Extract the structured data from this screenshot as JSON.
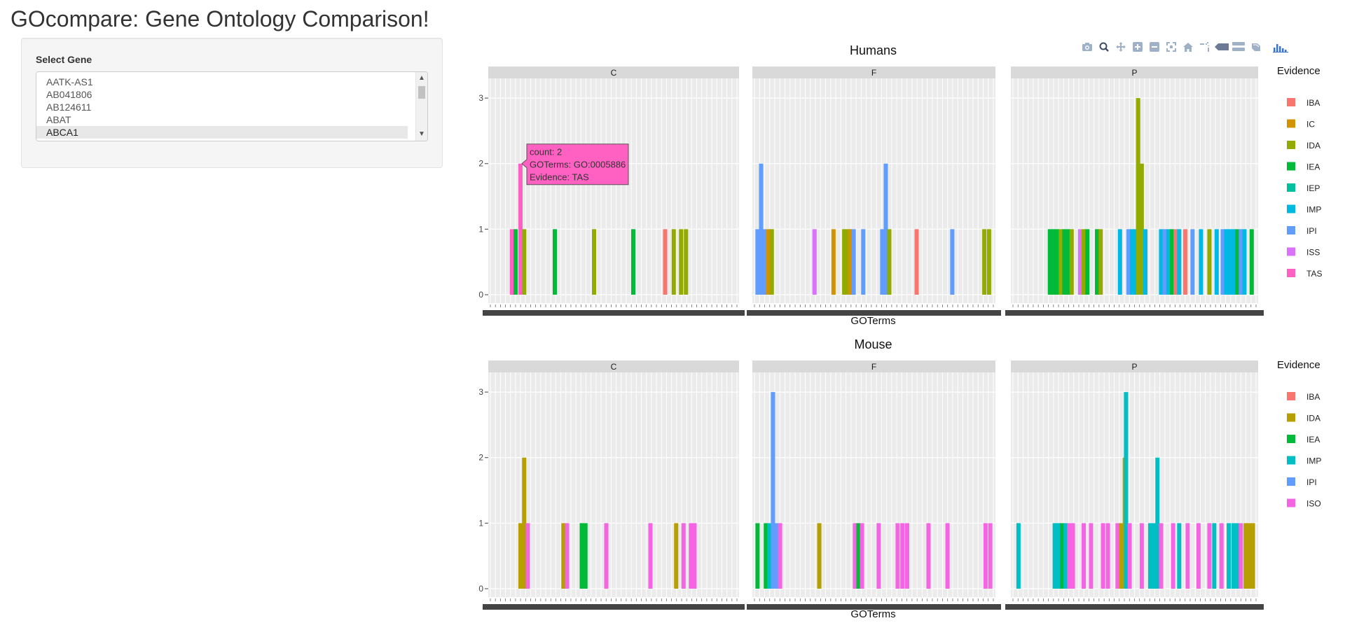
{
  "app": {
    "title": "GOcompare: Gene Ontology Comparison!"
  },
  "sidebar": {
    "select_label": "Select Gene",
    "genes": [
      "AATK-AS1",
      "AB041806",
      "AB124611",
      "ABAT",
      "ABCA1"
    ],
    "selected": "ABCA1"
  },
  "modebar": [
    "camera-icon",
    "zoom-icon",
    "pan-icon",
    "zoom-in-icon",
    "zoom-out-icon",
    "autoscale-icon",
    "reset-axes-icon",
    "spike-lines-icon",
    "hover-closest-icon",
    "hover-compare-icon",
    "edit-chart-icon",
    "plotly-logo-icon"
  ],
  "chart_data": [
    {
      "type": "bar",
      "title": "Humans",
      "xlabel": "GOTerms",
      "ylabel": "",
      "ylim": [
        0,
        3.3
      ],
      "yticks": [
        0,
        1,
        2,
        3
      ],
      "facets": [
        "C",
        "F",
        "P"
      ],
      "legend_title": "Evidence",
      "legend": [
        "IBA",
        "IC",
        "IDA",
        "IEA",
        "IEP",
        "IMP",
        "IPI",
        "ISS",
        "TAS"
      ],
      "colors": {
        "IBA": "#F8766D",
        "IC": "#D39200",
        "IDA": "#93AA00",
        "IEA": "#00BA38",
        "IEP": "#00C19F",
        "IMP": "#00B9E3",
        "IPI": "#619CFF",
        "ISS": "#DB72FB",
        "TAS": "#FF61C3"
      },
      "bars": [
        {
          "facet": "C",
          "x": 0.085,
          "count": 1,
          "evidence": "TAS"
        },
        {
          "facet": "C",
          "x": 0.1,
          "count": 1,
          "evidence": "IEA"
        },
        {
          "facet": "C",
          "x": 0.12,
          "count": 2,
          "evidence": "TAS"
        },
        {
          "facet": "C",
          "x": 0.135,
          "count": 1,
          "evidence": "IDA"
        },
        {
          "facet": "C",
          "x": 0.26,
          "count": 1,
          "evidence": "IEA"
        },
        {
          "facet": "C",
          "x": 0.42,
          "count": 1,
          "evidence": "IDA"
        },
        {
          "facet": "C",
          "x": 0.58,
          "count": 1,
          "evidence": "IEA"
        },
        {
          "facet": "C",
          "x": 0.71,
          "count": 1,
          "evidence": "IBA"
        },
        {
          "facet": "C",
          "x": 0.745,
          "count": 1,
          "evidence": "IDA"
        },
        {
          "facet": "C",
          "x": 0.775,
          "count": 1,
          "evidence": "IDA"
        },
        {
          "facet": "C",
          "x": 0.795,
          "count": 1,
          "evidence": "IDA"
        },
        {
          "facet": "F",
          "x": 0.01,
          "count": 1,
          "evidence": "IPI"
        },
        {
          "facet": "F",
          "x": 0.025,
          "count": 2,
          "evidence": "IPI"
        },
        {
          "facet": "F",
          "x": 0.04,
          "count": 1,
          "evidence": "IPI"
        },
        {
          "facet": "F",
          "x": 0.055,
          "count": 1,
          "evidence": "IC"
        },
        {
          "facet": "F",
          "x": 0.07,
          "count": 1,
          "evidence": "IDA"
        },
        {
          "facet": "F",
          "x": 0.25,
          "count": 1,
          "evidence": "ISS"
        },
        {
          "facet": "F",
          "x": 0.33,
          "count": 1,
          "evidence": "IC"
        },
        {
          "facet": "F",
          "x": 0.375,
          "count": 1,
          "evidence": "IDA"
        },
        {
          "facet": "F",
          "x": 0.39,
          "count": 1,
          "evidence": "IDA"
        },
        {
          "facet": "F",
          "x": 0.4,
          "count": 1,
          "evidence": "IC"
        },
        {
          "facet": "F",
          "x": 0.415,
          "count": 1,
          "evidence": "IPI"
        },
        {
          "facet": "F",
          "x": 0.455,
          "count": 1,
          "evidence": "IPI"
        },
        {
          "facet": "F",
          "x": 0.535,
          "count": 1,
          "evidence": "IPI"
        },
        {
          "facet": "F",
          "x": 0.55,
          "count": 2,
          "evidence": "IPI"
        },
        {
          "facet": "F",
          "x": 0.565,
          "count": 1,
          "evidence": "IDA"
        },
        {
          "facet": "F",
          "x": 0.68,
          "count": 1,
          "evidence": "IBA"
        },
        {
          "facet": "F",
          "x": 0.83,
          "count": 1,
          "evidence": "IPI"
        },
        {
          "facet": "F",
          "x": 0.965,
          "count": 1,
          "evidence": "IDA"
        },
        {
          "facet": "F",
          "x": 0.985,
          "count": 1,
          "evidence": "IDA"
        },
        {
          "facet": "P",
          "x": 0.15,
          "count": 1,
          "evidence": "IEA"
        },
        {
          "facet": "P",
          "x": 0.165,
          "count": 1,
          "evidence": "IEA"
        },
        {
          "facet": "P",
          "x": 0.18,
          "count": 1,
          "evidence": "IEA"
        },
        {
          "facet": "P",
          "x": 0.195,
          "count": 1,
          "evidence": "IDA"
        },
        {
          "facet": "P",
          "x": 0.21,
          "count": 1,
          "evidence": "IEA"
        },
        {
          "facet": "P",
          "x": 0.225,
          "count": 1,
          "evidence": "IEA"
        },
        {
          "facet": "P",
          "x": 0.24,
          "count": 1,
          "evidence": "IDA"
        },
        {
          "facet": "P",
          "x": 0.275,
          "count": 1,
          "evidence": "ISS"
        },
        {
          "facet": "P",
          "x": 0.29,
          "count": 1,
          "evidence": "IDA"
        },
        {
          "facet": "P",
          "x": 0.305,
          "count": 1,
          "evidence": "IEA"
        },
        {
          "facet": "P",
          "x": 0.345,
          "count": 1,
          "evidence": "IEA"
        },
        {
          "facet": "P",
          "x": 0.36,
          "count": 1,
          "evidence": "IDA"
        },
        {
          "facet": "P",
          "x": 0.44,
          "count": 1,
          "evidence": "IMP"
        },
        {
          "facet": "P",
          "x": 0.475,
          "count": 1,
          "evidence": "IPI"
        },
        {
          "facet": "P",
          "x": 0.49,
          "count": 1,
          "evidence": "IMP"
        },
        {
          "facet": "P",
          "x": 0.505,
          "count": 1,
          "evidence": "IMP"
        },
        {
          "facet": "P",
          "x": 0.515,
          "count": 3,
          "evidence": "IDA"
        },
        {
          "facet": "P",
          "x": 0.53,
          "count": 2,
          "evidence": "IDA"
        },
        {
          "facet": "P",
          "x": 0.545,
          "count": 1,
          "evidence": "IMP"
        },
        {
          "facet": "P",
          "x": 0.61,
          "count": 1,
          "evidence": "IMP"
        },
        {
          "facet": "P",
          "x": 0.625,
          "count": 1,
          "evidence": "IPI"
        },
        {
          "facet": "P",
          "x": 0.64,
          "count": 1,
          "evidence": "IMP"
        },
        {
          "facet": "P",
          "x": 0.655,
          "count": 1,
          "evidence": "IEA"
        },
        {
          "facet": "P",
          "x": 0.67,
          "count": 1,
          "evidence": "IBA"
        },
        {
          "facet": "P",
          "x": 0.685,
          "count": 1,
          "evidence": "IMP"
        },
        {
          "facet": "P",
          "x": 0.71,
          "count": 1,
          "evidence": "IBA"
        },
        {
          "facet": "P",
          "x": 0.74,
          "count": 1,
          "evidence": "IPI"
        },
        {
          "facet": "P",
          "x": 0.775,
          "count": 1,
          "evidence": "IMP"
        },
        {
          "facet": "P",
          "x": 0.81,
          "count": 1,
          "evidence": "IDA"
        },
        {
          "facet": "P",
          "x": 0.84,
          "count": 1,
          "evidence": "IMP"
        },
        {
          "facet": "P",
          "x": 0.865,
          "count": 1,
          "evidence": "IPI"
        },
        {
          "facet": "P",
          "x": 0.88,
          "count": 1,
          "evidence": "IMP"
        },
        {
          "facet": "P",
          "x": 0.895,
          "count": 1,
          "evidence": "IMP"
        },
        {
          "facet": "P",
          "x": 0.91,
          "count": 1,
          "evidence": "IMP"
        },
        {
          "facet": "P",
          "x": 0.925,
          "count": 1,
          "evidence": "IEA"
        },
        {
          "facet": "P",
          "x": 0.94,
          "count": 1,
          "evidence": "IPI"
        },
        {
          "facet": "P",
          "x": 0.955,
          "count": 1,
          "evidence": "IMP"
        },
        {
          "facet": "P",
          "x": 0.985,
          "count": 1,
          "evidence": "IEA"
        }
      ],
      "tooltip": {
        "facet": "C",
        "x": 0.12,
        "lines": [
          "count: 2",
          "GOTerms: GO:0005886",
          "Evidence: TAS"
        ],
        "color": "#FF61C3"
      }
    },
    {
      "type": "bar",
      "title": "Mouse",
      "xlabel": "GOTerms",
      "ylabel": "",
      "ylim": [
        0,
        3.3
      ],
      "yticks": [
        0,
        1,
        2,
        3
      ],
      "facets": [
        "C",
        "F",
        "P"
      ],
      "legend_title": "Evidence",
      "legend": [
        "IBA",
        "IDA",
        "IEA",
        "IMP",
        "IPI",
        "ISO"
      ],
      "colors": {
        "IBA": "#F8766D",
        "IDA": "#B79F00",
        "IEA": "#00BA38",
        "IMP": "#00BFC4",
        "IPI": "#619CFF",
        "ISO": "#F564E3"
      },
      "bars": [
        {
          "facet": "C",
          "x": 0.12,
          "count": 1,
          "evidence": "IDA"
        },
        {
          "facet": "C",
          "x": 0.135,
          "count": 2,
          "evidence": "IDA"
        },
        {
          "facet": "C",
          "x": 0.15,
          "count": 1,
          "evidence": "ISO"
        },
        {
          "facet": "C",
          "x": 0.295,
          "count": 1,
          "evidence": "IDA"
        },
        {
          "facet": "C",
          "x": 0.31,
          "count": 1,
          "evidence": "ISO"
        },
        {
          "facet": "C",
          "x": 0.37,
          "count": 1,
          "evidence": "IEA"
        },
        {
          "facet": "C",
          "x": 0.385,
          "count": 1,
          "evidence": "IEA"
        },
        {
          "facet": "C",
          "x": 0.47,
          "count": 1,
          "evidence": "ISO"
        },
        {
          "facet": "C",
          "x": 0.65,
          "count": 1,
          "evidence": "ISO"
        },
        {
          "facet": "C",
          "x": 0.755,
          "count": 1,
          "evidence": "IDA"
        },
        {
          "facet": "C",
          "x": 0.785,
          "count": 1,
          "evidence": "ISO"
        },
        {
          "facet": "C",
          "x": 0.815,
          "count": 1,
          "evidence": "ISO"
        },
        {
          "facet": "C",
          "x": 0.83,
          "count": 1,
          "evidence": "ISO"
        },
        {
          "facet": "F",
          "x": 0.01,
          "count": 1,
          "evidence": "IEA"
        },
        {
          "facet": "F",
          "x": 0.045,
          "count": 1,
          "evidence": "IEA"
        },
        {
          "facet": "F",
          "x": 0.06,
          "count": 1,
          "evidence": "IMP"
        },
        {
          "facet": "F",
          "x": 0.075,
          "count": 3,
          "evidence": "IPI"
        },
        {
          "facet": "F",
          "x": 0.09,
          "count": 1,
          "evidence": "IPI"
        },
        {
          "facet": "F",
          "x": 0.105,
          "count": 1,
          "evidence": "ISO"
        },
        {
          "facet": "F",
          "x": 0.27,
          "count": 1,
          "evidence": "IDA"
        },
        {
          "facet": "F",
          "x": 0.42,
          "count": 1,
          "evidence": "ISO"
        },
        {
          "facet": "F",
          "x": 0.435,
          "count": 1,
          "evidence": "IEA"
        },
        {
          "facet": "F",
          "x": 0.45,
          "count": 1,
          "evidence": "ISO"
        },
        {
          "facet": "F",
          "x": 0.52,
          "count": 1,
          "evidence": "ISO"
        },
        {
          "facet": "F",
          "x": 0.6,
          "count": 1,
          "evidence": "ISO"
        },
        {
          "facet": "F",
          "x": 0.62,
          "count": 1,
          "evidence": "ISO"
        },
        {
          "facet": "F",
          "x": 0.64,
          "count": 1,
          "evidence": "ISO"
        },
        {
          "facet": "F",
          "x": 0.73,
          "count": 1,
          "evidence": "ISO"
        },
        {
          "facet": "F",
          "x": 0.81,
          "count": 1,
          "evidence": "ISO"
        },
        {
          "facet": "F",
          "x": 0.97,
          "count": 1,
          "evidence": "ISO"
        },
        {
          "facet": "F",
          "x": 0.99,
          "count": 1,
          "evidence": "ISO"
        },
        {
          "facet": "P",
          "x": 0.02,
          "count": 1,
          "evidence": "IMP"
        },
        {
          "facet": "P",
          "x": 0.17,
          "count": 1,
          "evidence": "IMP"
        },
        {
          "facet": "P",
          "x": 0.185,
          "count": 1,
          "evidence": "IMP"
        },
        {
          "facet": "P",
          "x": 0.2,
          "count": 1,
          "evidence": "IEA"
        },
        {
          "facet": "P",
          "x": 0.215,
          "count": 1,
          "evidence": "IMP"
        },
        {
          "facet": "P",
          "x": 0.23,
          "count": 1,
          "evidence": "ISO"
        },
        {
          "facet": "P",
          "x": 0.245,
          "count": 1,
          "evidence": "ISO"
        },
        {
          "facet": "P",
          "x": 0.29,
          "count": 1,
          "evidence": "ISO"
        },
        {
          "facet": "P",
          "x": 0.32,
          "count": 1,
          "evidence": "ISO"
        },
        {
          "facet": "P",
          "x": 0.37,
          "count": 1,
          "evidence": "ISO"
        },
        {
          "facet": "P",
          "x": 0.39,
          "count": 1,
          "evidence": "ISO"
        },
        {
          "facet": "P",
          "x": 0.43,
          "count": 1,
          "evidence": "ISO"
        },
        {
          "facet": "P",
          "x": 0.445,
          "count": 1,
          "evidence": "IDA"
        },
        {
          "facet": "P",
          "x": 0.46,
          "count": 2,
          "evidence": "IDA"
        },
        {
          "facet": "P",
          "x": 0.465,
          "count": 3,
          "evidence": "IMP"
        },
        {
          "facet": "P",
          "x": 0.48,
          "count": 1,
          "evidence": "ISO"
        },
        {
          "facet": "P",
          "x": 0.53,
          "count": 1,
          "evidence": "ISO"
        },
        {
          "facet": "P",
          "x": 0.565,
          "count": 1,
          "evidence": "IMP"
        },
        {
          "facet": "P",
          "x": 0.58,
          "count": 1,
          "evidence": "IMP"
        },
        {
          "facet": "P",
          "x": 0.595,
          "count": 2,
          "evidence": "IMP"
        },
        {
          "facet": "P",
          "x": 0.61,
          "count": 1,
          "evidence": "ISO"
        },
        {
          "facet": "P",
          "x": 0.66,
          "count": 1,
          "evidence": "ISO"
        },
        {
          "facet": "P",
          "x": 0.685,
          "count": 1,
          "evidence": "IMP"
        },
        {
          "facet": "P",
          "x": 0.72,
          "count": 1,
          "evidence": "ISO"
        },
        {
          "facet": "P",
          "x": 0.765,
          "count": 1,
          "evidence": "ISO"
        },
        {
          "facet": "P",
          "x": 0.81,
          "count": 1,
          "evidence": "ISO"
        },
        {
          "facet": "P",
          "x": 0.83,
          "count": 1,
          "evidence": "IMP"
        },
        {
          "facet": "P",
          "x": 0.86,
          "count": 1,
          "evidence": "ISO"
        },
        {
          "facet": "P",
          "x": 0.89,
          "count": 1,
          "evidence": "IMP"
        },
        {
          "facet": "P",
          "x": 0.91,
          "count": 1,
          "evidence": "IMP"
        },
        {
          "facet": "P",
          "x": 0.925,
          "count": 1,
          "evidence": "IMP"
        },
        {
          "facet": "P",
          "x": 0.94,
          "count": 1,
          "evidence": "ISO"
        },
        {
          "facet": "P",
          "x": 0.96,
          "count": 1,
          "evidence": "IDA"
        },
        {
          "facet": "P",
          "x": 0.975,
          "count": 1,
          "evidence": "IDA"
        },
        {
          "facet": "P",
          "x": 0.99,
          "count": 1,
          "evidence": "IDA"
        }
      ]
    }
  ]
}
